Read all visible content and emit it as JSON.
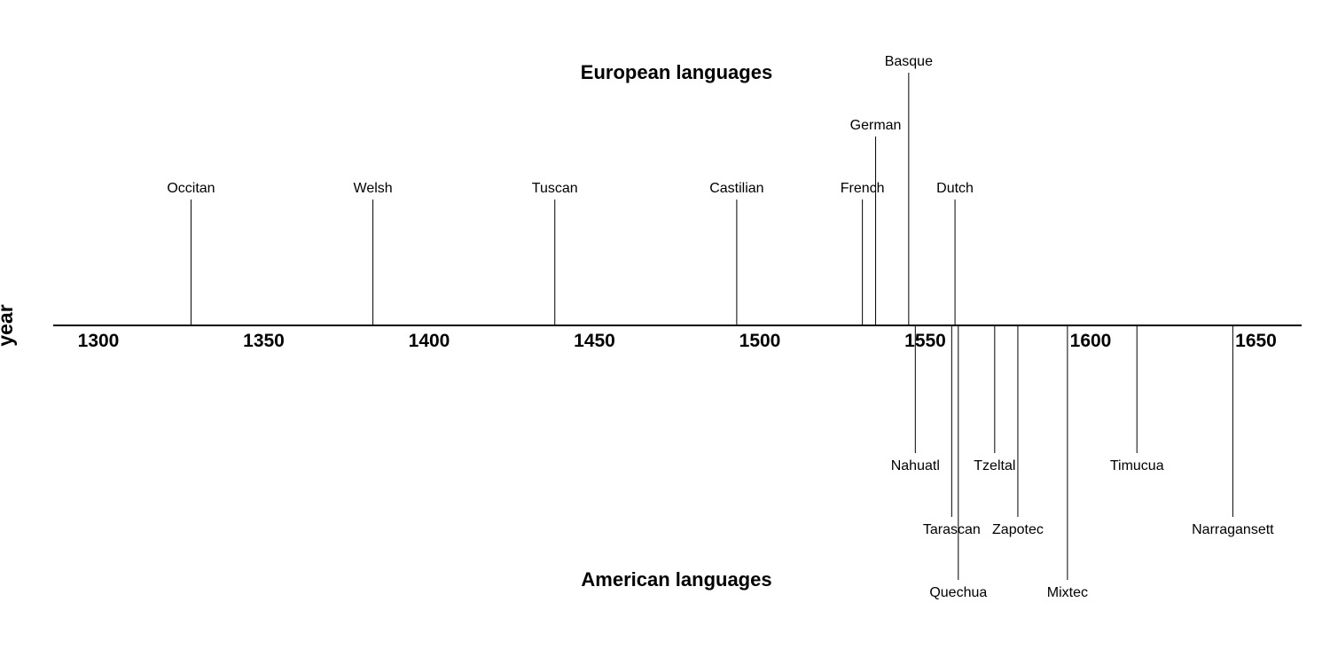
{
  "chart_data": {
    "type": "timeline",
    "ylabel": "year",
    "xlim": [
      1287,
      1665
    ],
    "ticks": [
      1300,
      1350,
      1400,
      1450,
      1500,
      1550,
      1600,
      1650
    ],
    "groups": {
      "top": "European languages",
      "bottom": "American languages"
    },
    "events": [
      {
        "label": "Occitan",
        "year": 1328,
        "group": "top",
        "level": 1
      },
      {
        "label": "Welsh",
        "year": 1383,
        "group": "top",
        "level": 1
      },
      {
        "label": "Tuscan",
        "year": 1438,
        "group": "top",
        "level": 1
      },
      {
        "label": "Castilian",
        "year": 1493,
        "group": "top",
        "level": 1
      },
      {
        "label": "French",
        "year": 1531,
        "group": "top",
        "level": 1
      },
      {
        "label": "German",
        "year": 1535,
        "group": "top",
        "level": 2
      },
      {
        "label": "Basque",
        "year": 1545,
        "group": "top",
        "level": 3
      },
      {
        "label": "Dutch",
        "year": 1559,
        "group": "top",
        "level": 1
      },
      {
        "label": "Nahuatl",
        "year": 1547,
        "group": "bottom",
        "level": 1
      },
      {
        "label": "Tarascan",
        "year": 1558,
        "group": "bottom",
        "level": 2
      },
      {
        "label": "Quechua",
        "year": 1560,
        "group": "bottom",
        "level": 3
      },
      {
        "label": "Tzeltal",
        "year": 1571,
        "group": "bottom",
        "level": 1
      },
      {
        "label": "Zapotec",
        "year": 1578,
        "group": "bottom",
        "level": 2
      },
      {
        "label": "Mixtec",
        "year": 1593,
        "group": "bottom",
        "level": 3
      },
      {
        "label": "Timucua",
        "year": 1614,
        "group": "bottom",
        "level": 1
      },
      {
        "label": "Narragansett",
        "year": 1643,
        "group": "bottom",
        "level": 2
      }
    ]
  }
}
